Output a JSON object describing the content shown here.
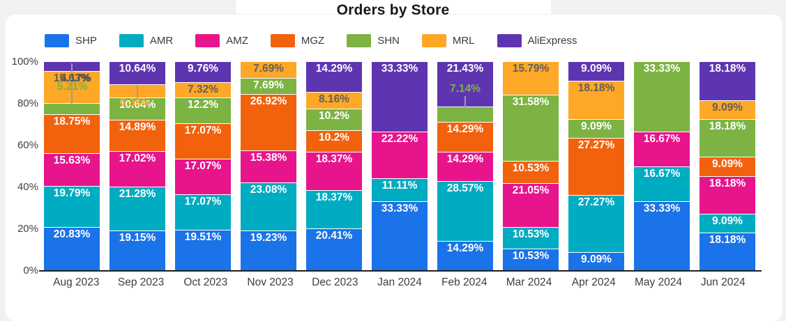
{
  "chart_data": {
    "type": "bar",
    "subtype": "stacked-100-percent",
    "title": "Orders by Store",
    "legend_position": "top",
    "grid": false,
    "categories": [
      "Aug 2023",
      "Sep 2023",
      "Oct 2023",
      "Nov 2023",
      "Dec 2023",
      "Jan 2024",
      "Feb 2024",
      "Mar 2024",
      "Apr 2024",
      "May 2024",
      "Jun 2024"
    ],
    "y_axis": {
      "min": 0,
      "max": 100,
      "ticks": [
        "100%",
        "80%",
        "60%",
        "40%",
        "20%",
        "0%"
      ]
    },
    "label_colors": {
      "default": "#ffffff",
      "on_amber": "#5f5f5f"
    },
    "series": [
      {
        "name": "SHP",
        "color": "#1a73e8",
        "values": [
          "20.83",
          "19.15",
          "19.51",
          "19.23",
          "20.41",
          "33.33",
          "14.29",
          "10.53",
          "9.09",
          "33.33",
          "18.18"
        ]
      },
      {
        "name": "AMR",
        "color": "#00acc1",
        "values": [
          "19.79",
          "21.28",
          "17.07",
          "23.08",
          "18.37",
          "11.11",
          "28.57",
          "10.53",
          "27.27",
          "16.67",
          "9.09"
        ]
      },
      {
        "name": "AMZ",
        "color": "#e8148c",
        "values": [
          "15.63",
          "17.02",
          "17.07",
          "15.38",
          "18.37",
          "22.22",
          "14.29",
          "21.05",
          null,
          "16.67",
          "18.18"
        ]
      },
      {
        "name": "MGZ",
        "color": "#f2620d",
        "values": [
          "18.75",
          "14.89",
          "17.07",
          "26.92",
          "10.2",
          null,
          "14.29",
          "10.53",
          "27.27",
          null,
          "9.09"
        ]
      },
      {
        "name": "SHN",
        "color": "#7cb342",
        "values": [
          "5.21",
          "10.64",
          "12.2",
          "7.69",
          "10.2",
          null,
          "7.14",
          "31.58",
          "9.09",
          "33.33",
          "18.18"
        ]
      },
      {
        "name": "MRL",
        "color": "#ffa726",
        "values": [
          "15.63",
          "6.38",
          "7.32",
          "7.69",
          "8.16",
          null,
          null,
          "15.79",
          "18.18",
          null,
          "9.09"
        ]
      },
      {
        "name": "AliExpress",
        "color": "#5e35b1",
        "values": [
          "4.17",
          "10.64",
          "9.76",
          null,
          "14.29",
          "33.33",
          "21.43",
          null,
          "9.09",
          null,
          "18.18"
        ]
      }
    ],
    "outside_labels": [
      {
        "category_index": 0,
        "series": "AliExpress",
        "text": "4.17%",
        "color": "#555555",
        "dx": 6,
        "y": 15
      },
      {
        "category_index": 0,
        "series": "SHN",
        "text": "5.21%",
        "color": "#7cb342",
        "dx": 1,
        "y": 27
      },
      {
        "category_index": 1,
        "series": "MRL",
        "text": "6.38%",
        "color": "#ffa726",
        "dx": -3,
        "y": 50
      },
      {
        "category_index": 6,
        "series": "SHN",
        "text": "7.14%",
        "color": "#7cb342",
        "dx": 0,
        "y": 30
      }
    ],
    "leader_lines": [
      {
        "category_index": 0,
        "y1": 2,
        "y2": 62
      },
      {
        "category_index": 1,
        "y1": 33,
        "y2": 60
      },
      {
        "category_index": 6,
        "y1": 49,
        "y2": 65
      }
    ]
  }
}
